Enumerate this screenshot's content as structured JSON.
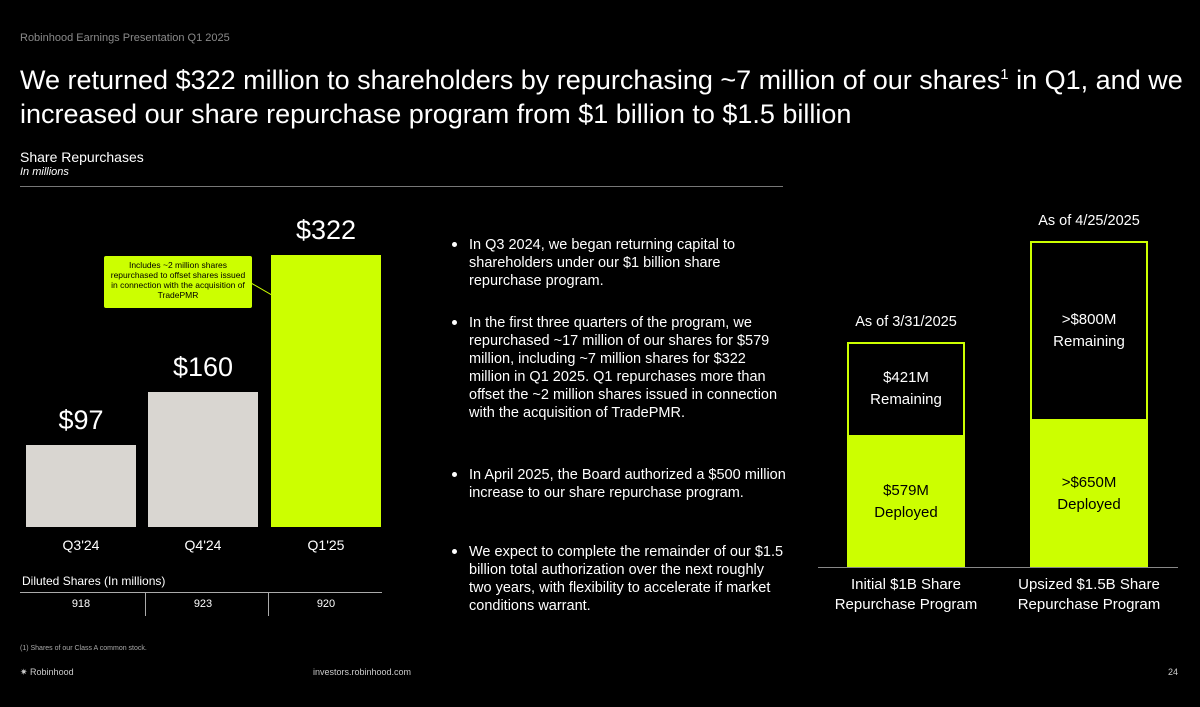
{
  "header": "Robinhood Earnings Presentation Q1 2025",
  "title_parts": [
    "We returned $322 million to shareholders by repurchasing ~7 million of our shares",
    "1",
    " in Q1, and we increased our share repurchase program from $1 billion to $1.5 billion"
  ],
  "section": {
    "title": "Share Repurchases",
    "subtitle": "In millions"
  },
  "chart_data": [
    {
      "type": "bar",
      "categories": [
        "Q3'24",
        "Q4'24",
        "Q1'25"
      ],
      "values": [
        97,
        160,
        322
      ],
      "value_labels": [
        "$97",
        "$160",
        "$322"
      ],
      "colors": [
        "#d9d6d1",
        "#d9d6d1",
        "#ccff00"
      ],
      "annotation": "Includes ~2 million shares repurchased to offset shares issued in connection with the acquisition of TradePMR",
      "diluted_shares": {
        "label": "Diluted Shares (In millions)",
        "values": [
          918,
          923,
          920
        ]
      }
    },
    {
      "type": "stacked-bar",
      "categories": [
        "Initial $1B Share Repurchase Program",
        "Upsized $1.5B Share Repurchase Program"
      ],
      "headers": [
        "As of 3/31/2025",
        "As of 4/25/2025"
      ],
      "series": [
        {
          "name": "Deployed",
          "color": "#ccff00",
          "values": [
            579,
            650
          ],
          "value_labels": [
            "$579M",
            ">$650M"
          ]
        },
        {
          "name": "Remaining",
          "color": "#000000",
          "values": [
            421,
            800
          ],
          "value_labels": [
            "$421M",
            ">$800M"
          ]
        }
      ]
    }
  ],
  "bullets": [
    "In Q3 2024, we began returning capital to shareholders under our $1 billion share repurchase program.",
    "In the first three quarters of the program, we repurchased ~17 million of our shares for $579 million, including ~7 million shares for $322 million in Q1 2025. Q1 repurchases more than offset the ~2 million shares issued in connection with the acquisition of TradePMR.",
    "In April 2025, the Board authorized a $500 million increase to our share repurchase program.",
    "We expect to complete the remainder of our $1.5 billion total authorization over the next roughly two years, with flexibility to accelerate if market conditions warrant."
  ],
  "footnote": "(1) Shares of our Class A common stock.",
  "footer": {
    "brand": "Robinhood",
    "url": "investors.robinhood.com",
    "page": "24"
  }
}
